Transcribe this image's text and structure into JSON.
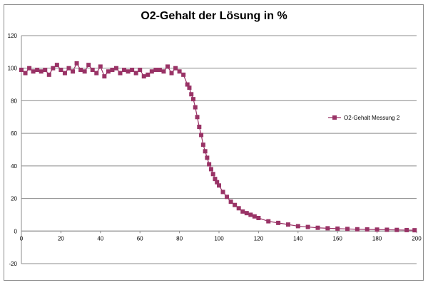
{
  "chart_data": {
    "type": "line",
    "title": "O2-Gehalt der Lösung in %",
    "xlabel": "",
    "ylabel": "",
    "xlim": [
      0,
      200
    ],
    "ylim": [
      -20,
      120
    ],
    "x_ticks": [
      "0",
      "20",
      "40",
      "60",
      "80",
      "100",
      "120",
      "140",
      "160",
      "180",
      "200"
    ],
    "y_ticks": [
      "-20",
      "0",
      "20",
      "40",
      "60",
      "80",
      "100",
      "120"
    ],
    "grid": "horizontal",
    "legend_position": "right",
    "color": "#993366",
    "marker": "square",
    "series": [
      {
        "name": "O2-Gehalt Messung 2",
        "x": [
          0,
          2,
          4,
          6,
          8,
          10,
          12,
          14,
          16,
          18,
          20,
          22,
          24,
          26,
          28,
          30,
          32,
          34,
          36,
          38,
          40,
          42,
          44,
          46,
          48,
          50,
          52,
          54,
          56,
          58,
          60,
          62,
          64,
          66,
          68,
          70,
          72,
          74,
          76,
          78,
          80,
          82,
          84,
          85,
          86,
          87,
          88,
          89,
          90,
          91,
          92,
          93,
          94,
          95,
          96,
          97,
          98,
          99,
          100,
          102,
          104,
          106,
          108,
          110,
          112,
          114,
          116,
          118,
          120,
          125,
          130,
          135,
          140,
          145,
          150,
          155,
          160,
          165,
          170,
          175,
          180,
          185,
          190,
          195,
          199
        ],
        "values": [
          99,
          97,
          100,
          98,
          99,
          98,
          99,
          96,
          100,
          102,
          99,
          97,
          100,
          98,
          103,
          99,
          98,
          102,
          99,
          97,
          101,
          95,
          98,
          99,
          100,
          97,
          99,
          98,
          99,
          97,
          99,
          95,
          96,
          98,
          99,
          99,
          98,
          101,
          97,
          100,
          98,
          96,
          90,
          88,
          84,
          81,
          76,
          70,
          64,
          59,
          53,
          49,
          45,
          41,
          38,
          35,
          32,
          30,
          28,
          24,
          21,
          18,
          16,
          14,
          12,
          11,
          10,
          9,
          8,
          6,
          5,
          4,
          3,
          2.5,
          2,
          1.7,
          1.5,
          1.3,
          1.1,
          1,
          0.9,
          0.8,
          0.7,
          0.6,
          0.5
        ]
      }
    ]
  }
}
